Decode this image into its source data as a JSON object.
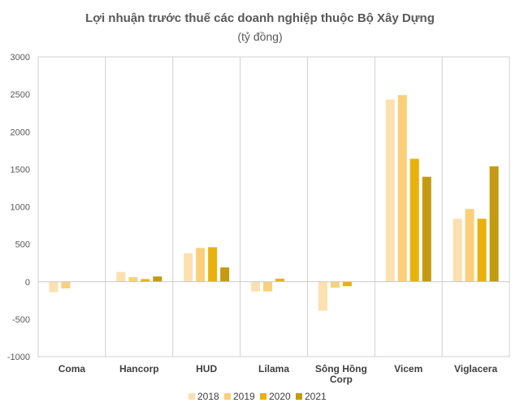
{
  "chart_data": {
    "type": "bar",
    "title": "Lợi nhuận trước thuế các doanh nghiệp thuộc Bộ Xây Dựng",
    "subtitle": "(tỷ đồng)",
    "xlabel": "",
    "ylabel": "",
    "ylim": [
      -1000,
      3000
    ],
    "yticks": [
      3000,
      2500,
      2000,
      1500,
      1000,
      500,
      0,
      -500,
      -1000
    ],
    "grid": false,
    "legend_position": "bottom",
    "categories": [
      "Coma",
      "Hancorp",
      "HUD",
      "Lilama",
      "Sông Hồng\nCorp",
      "Vicem",
      "Viglacera"
    ],
    "series": [
      {
        "name": "2018",
        "color": "#fde0b0",
        "values": [
          -140,
          130,
          380,
          -130,
          -390,
          2430,
          840
        ]
      },
      {
        "name": "2019",
        "color": "#fbcf7a",
        "values": [
          -90,
          60,
          450,
          -130,
          -80,
          2490,
          970
        ]
      },
      {
        "name": "2020",
        "color": "#e9b10c",
        "values": [
          null,
          35,
          460,
          40,
          -60,
          1640,
          840
        ]
      },
      {
        "name": "2021",
        "color": "#c39a12",
        "values": [
          null,
          70,
          190,
          null,
          null,
          1400,
          1540
        ]
      }
    ]
  }
}
